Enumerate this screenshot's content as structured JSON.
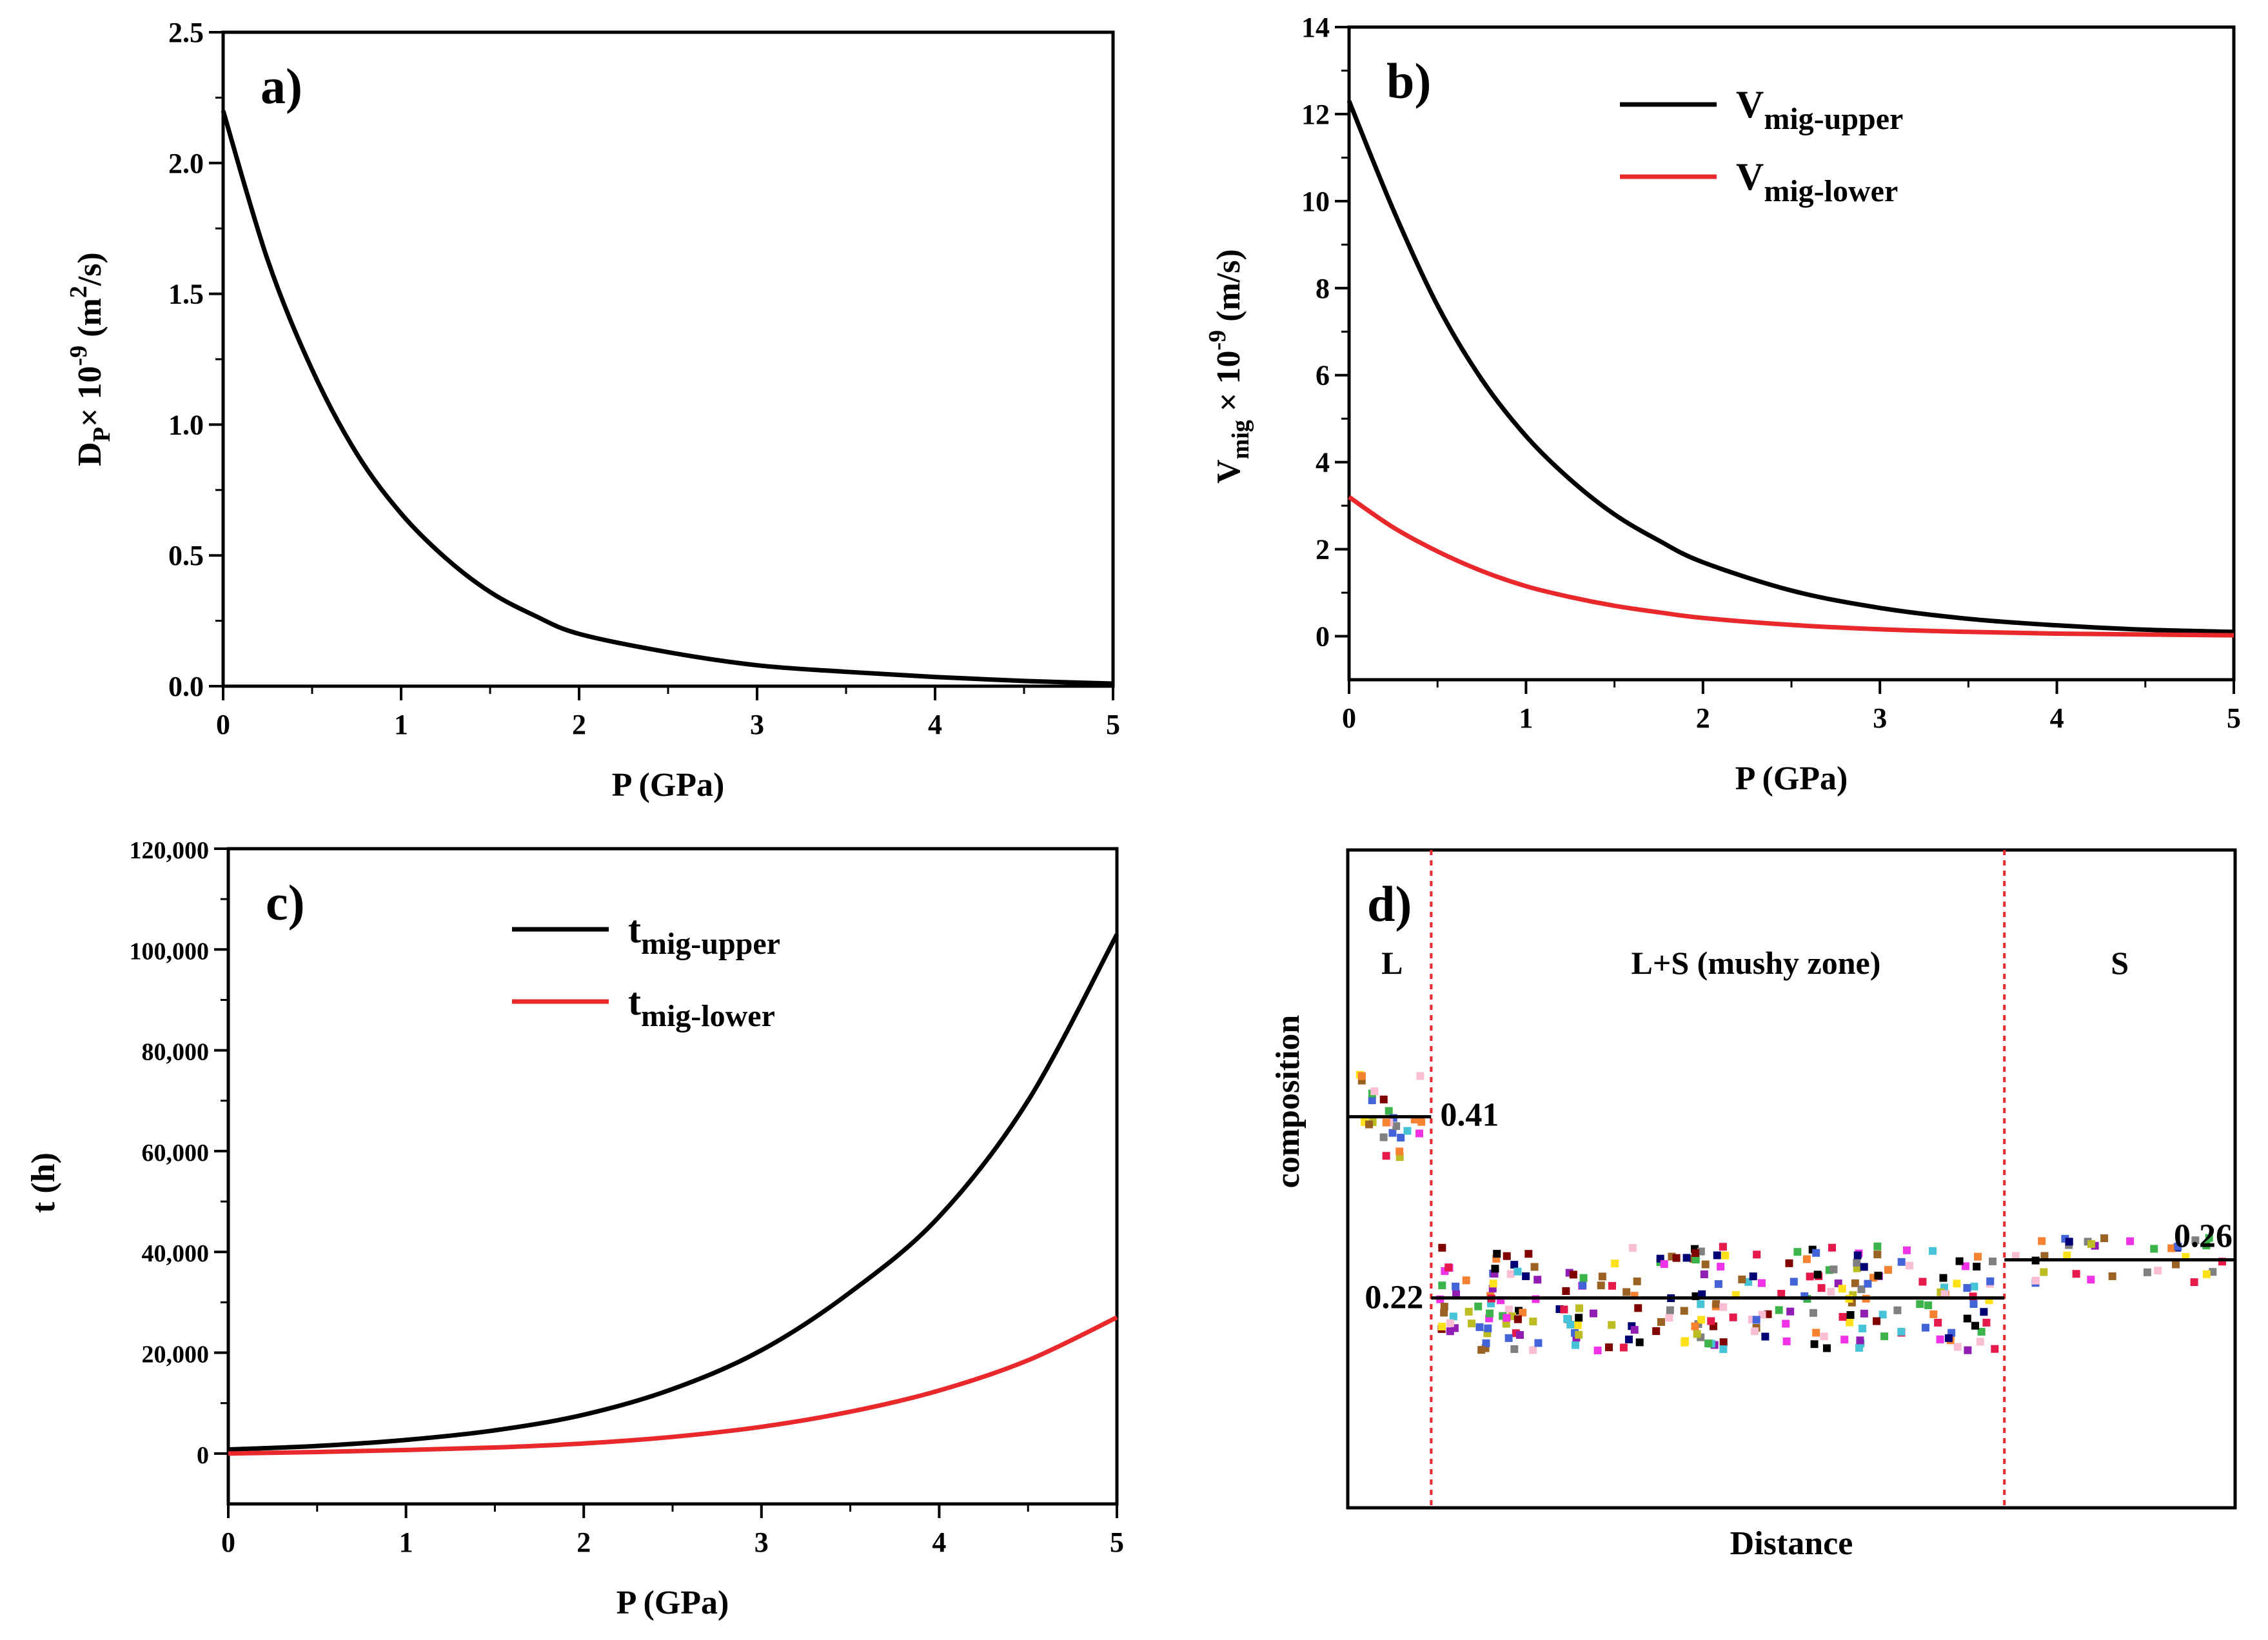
{
  "chart_data": [
    {
      "id": "a",
      "type": "line",
      "panel_label": "a)",
      "xlabel": "P (GPa)",
      "ylabel": {
        "main": "D",
        "sub": "P",
        "mid": "× 10",
        "sup": "-9",
        "unit": " (m",
        "unit_sup": "2",
        "unit_end": "/s)"
      },
      "xlim": [
        0,
        5
      ],
      "ylim": [
        0,
        2.5
      ],
      "x_ticks": [
        "0",
        "1",
        "2",
        "3",
        "4",
        "5"
      ],
      "y_ticks": [
        "0.0",
        "0.5",
        "1.0",
        "1.5",
        "2.0",
        "2.5"
      ],
      "series": [
        {
          "color": "#000000",
          "x": [
            0,
            0.25,
            0.5,
            0.75,
            1,
            1.25,
            1.5,
            1.75,
            2,
            2.5,
            3,
            3.5,
            4,
            4.5,
            5
          ],
          "y": [
            2.2,
            1.63,
            1.21,
            0.89,
            0.66,
            0.49,
            0.36,
            0.27,
            0.2,
            0.13,
            0.08,
            0.055,
            0.035,
            0.02,
            0.01
          ]
        }
      ]
    },
    {
      "id": "b",
      "type": "line",
      "panel_label": "b)",
      "xlabel": "P (GPa)",
      "ylabel": {
        "main": "V",
        "sub": "mig",
        "mid": " × 10",
        "sup": "-9",
        "unit": " (m/s)"
      },
      "xlim": [
        0,
        5
      ],
      "ylim": [
        -1,
        14
      ],
      "x_ticks": [
        "0",
        "1",
        "2",
        "3",
        "4",
        "5"
      ],
      "y_ticks": [
        "0",
        "2",
        "4",
        "6",
        "8",
        "10",
        "12",
        "14"
      ],
      "legend_position": "top-right",
      "series": [
        {
          "name": "V",
          "name_sub": "mig-upper",
          "color": "#000000",
          "x": [
            0,
            0.25,
            0.5,
            0.75,
            1,
            1.25,
            1.5,
            1.75,
            2,
            2.5,
            3,
            3.5,
            4,
            4.5,
            5
          ],
          "y": [
            12.3,
            9.8,
            7.6,
            5.9,
            4.6,
            3.6,
            2.8,
            2.2,
            1.7,
            1.05,
            0.65,
            0.4,
            0.25,
            0.15,
            0.1
          ]
        },
        {
          "name": "V",
          "name_sub": "mig-lower",
          "color": "#e8282b",
          "x": [
            0,
            0.25,
            0.5,
            0.75,
            1,
            1.25,
            1.5,
            1.75,
            2,
            2.5,
            3,
            3.5,
            4,
            4.5,
            5
          ],
          "y": [
            3.2,
            2.5,
            1.95,
            1.5,
            1.15,
            0.9,
            0.7,
            0.55,
            0.42,
            0.26,
            0.16,
            0.1,
            0.06,
            0.04,
            0.02
          ]
        }
      ]
    },
    {
      "id": "c",
      "type": "line",
      "panel_label": "c)",
      "xlabel": "P (GPa)",
      "ylabel": {
        "main": "t (h)"
      },
      "xlim": [
        0,
        5
      ],
      "ylim": [
        -10000,
        120000
      ],
      "x_ticks": [
        "0",
        "1",
        "2",
        "3",
        "4",
        "5"
      ],
      "y_ticks": [
        "0",
        "20,000",
        "40,000",
        "60,000",
        "80,000",
        "100,000",
        "120,000"
      ],
      "legend_position": "top-center",
      "series": [
        {
          "name": "t",
          "name_sub": "mig-upper",
          "color": "#000000",
          "x": [
            0,
            0.5,
            1,
            1.5,
            2,
            2.5,
            3,
            3.5,
            4,
            4.5,
            5
          ],
          "y": [
            800,
            1500,
            2700,
            4600,
            7700,
            12800,
            20500,
            32000,
            47000,
            70000,
            103000
          ]
        },
        {
          "name": "t",
          "name_sub": "mig-lower",
          "color": "#e8282b",
          "x": [
            0,
            0.5,
            1,
            1.5,
            2,
            2.5,
            3,
            3.5,
            4,
            4.5,
            5
          ],
          "y": [
            0,
            300,
            700,
            1200,
            2000,
            3300,
            5300,
            8300,
            12500,
            18500,
            27000
          ]
        }
      ]
    },
    {
      "id": "d",
      "type": "scatter",
      "panel_label": "d)",
      "xlabel": "Distance",
      "ylabel": {
        "main": "composition"
      },
      "xlim": [
        0,
        1
      ],
      "ylim": [
        0,
        1
      ],
      "zones": [
        {
          "label": "L",
          "x": 0.05
        },
        {
          "label": "L+S (mushy zone)",
          "x": 0.46
        },
        {
          "label": "S",
          "x": 0.87
        }
      ],
      "zone_boundaries": [
        0.094,
        0.74
      ],
      "boundary_color": "#e8282b",
      "mean_lines": [
        {
          "x0": 0,
          "x1": 0.094,
          "y": 0.41,
          "label": "0.41"
        },
        {
          "x0": 0.094,
          "x1": 0.74,
          "y": 0.22,
          "label": "0.22"
        },
        {
          "x0": 0.74,
          "x1": 1.0,
          "y": 0.26,
          "label": "0.26"
        }
      ],
      "scatter_colors": [
        "#e6194b",
        "#3cb44b",
        "#4363d8",
        "#f58231",
        "#911eb4",
        "#46c3d6",
        "#f032e6",
        "#bcbd22",
        "#9a6324",
        "#800000",
        "#000075",
        "#808080",
        "#fabed4",
        "#000000",
        "#ffe119"
      ]
    }
  ]
}
